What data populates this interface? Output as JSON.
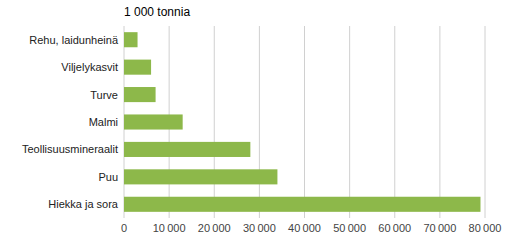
{
  "chart_data": {
    "type": "bar",
    "orientation": "horizontal",
    "xlabel": "1 000 tonnia",
    "categories": [
      "Rehu, laidunheinä",
      "Viljelykasvit",
      "Turve",
      "Malmi",
      "Teollisuusmineraalit",
      "Puu",
      "Hiekka ja sora"
    ],
    "values": [
      3000,
      6000,
      7000,
      13000,
      28000,
      34000,
      79000
    ],
    "color": "#8db84a",
    "xlim": [
      0,
      80000
    ],
    "xticks": [
      0,
      {
        "value": 10000,
        "label": "10 000"
      },
      {
        "value": 20000,
        "label": "20 000"
      },
      {
        "value": 30000,
        "label": "30 000"
      },
      {
        "value": 40000,
        "label": "40 000"
      },
      {
        "value": 50000,
        "label": "50 000"
      },
      {
        "value": 60000,
        "label": "60 000"
      },
      {
        "value": 70000,
        "label": "70 000"
      },
      {
        "value": 80000,
        "label": "80 000"
      }
    ],
    "grid": true
  }
}
